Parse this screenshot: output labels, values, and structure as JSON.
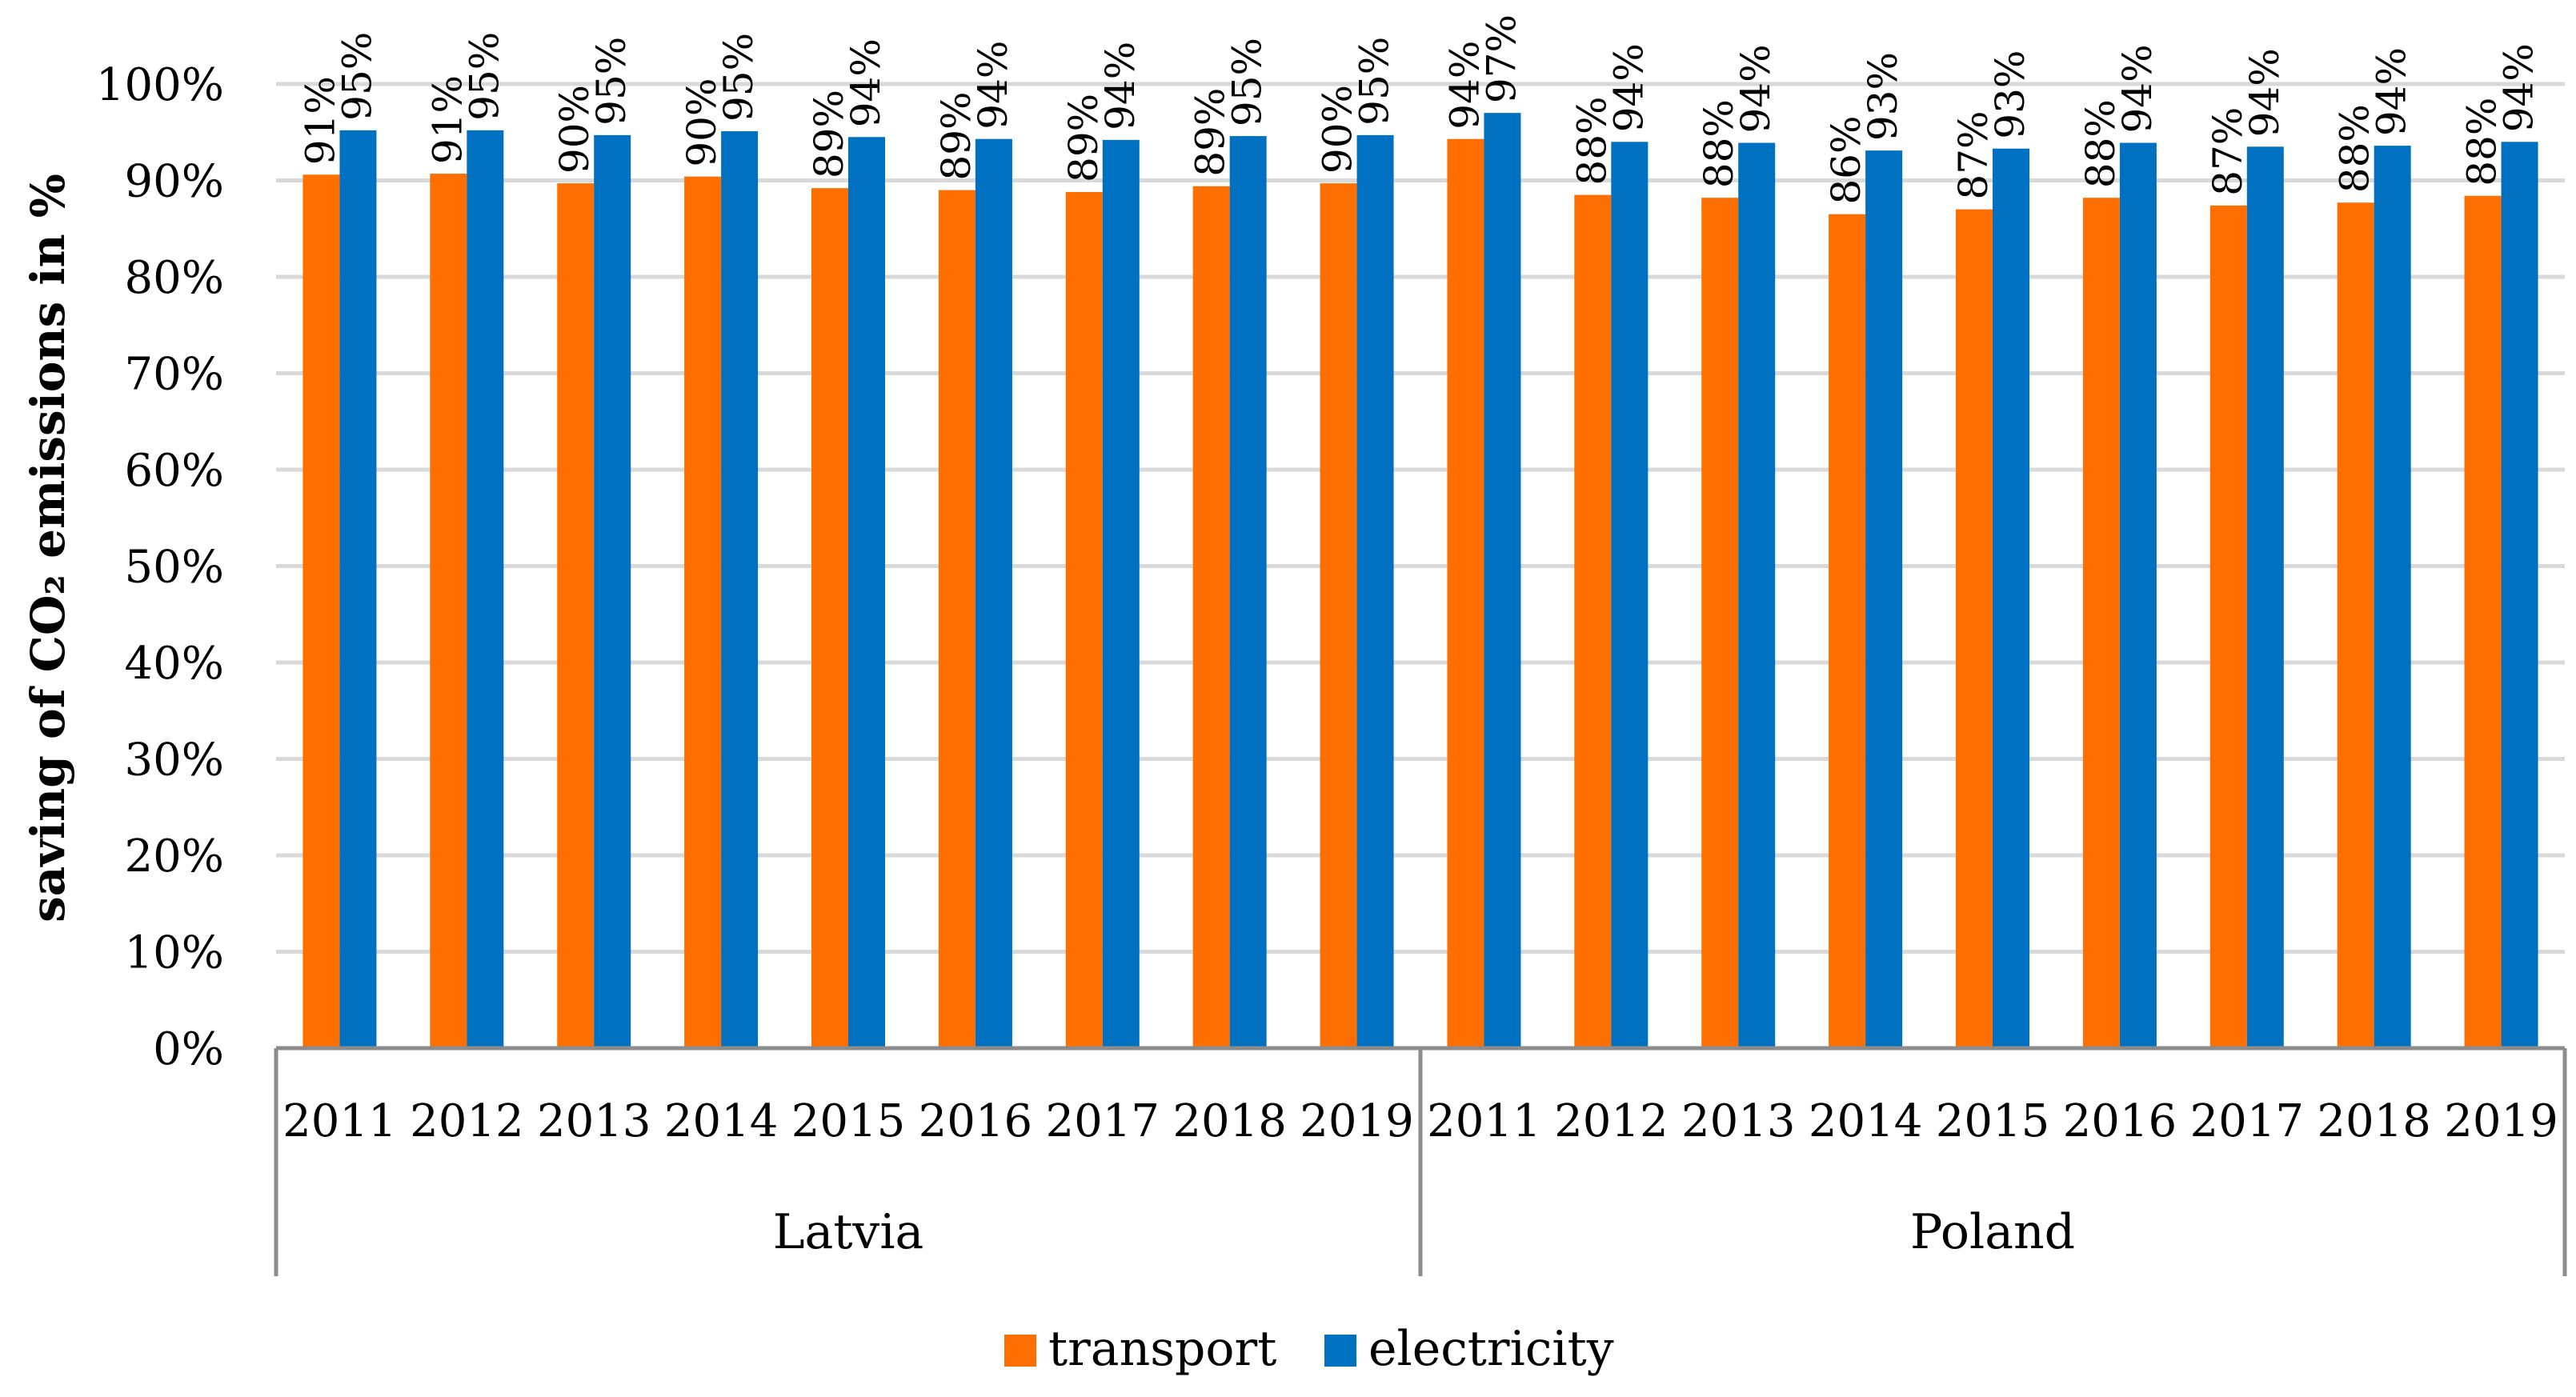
{
  "chart_data": {
    "type": "bar",
    "ylabel": "saving of CO₂ emissions in %",
    "ylim": [
      0,
      100
    ],
    "yticks": [
      "0%",
      "10%",
      "20%",
      "30%",
      "40%",
      "50%",
      "60%",
      "70%",
      "80%",
      "90%",
      "100%"
    ],
    "grid": true,
    "legend_position": "bottom",
    "groups": [
      {
        "name": "Latvia",
        "categories": [
          "2011",
          "2012",
          "2013",
          "2014",
          "2015",
          "2016",
          "2017",
          "2018",
          "2019"
        ]
      },
      {
        "name": "Poland",
        "categories": [
          "2011",
          "2012",
          "2013",
          "2014",
          "2015",
          "2016",
          "2017",
          "2018",
          "2019"
        ]
      }
    ],
    "series": [
      {
        "name": "transport",
        "color": "#FF6F00",
        "values": [
          90.6,
          90.7,
          89.7,
          90.4,
          89.2,
          89.0,
          88.8,
          89.4,
          89.7,
          94.3,
          88.5,
          88.2,
          86.5,
          87.0,
          88.2,
          87.4,
          87.7,
          88.4
        ],
        "labels": [
          "91%",
          "91%",
          "90%",
          "90%",
          "89%",
          "89%",
          "89%",
          "89%",
          "90%",
          "94%",
          "88%",
          "88%",
          "86%",
          "87%",
          "88%",
          "87%",
          "88%",
          "88%"
        ]
      },
      {
        "name": "electricity",
        "color": "#0070C0",
        "values": [
          95.2,
          95.2,
          94.7,
          95.1,
          94.5,
          94.3,
          94.2,
          94.6,
          94.7,
          97.0,
          94.0,
          93.9,
          93.1,
          93.3,
          93.9,
          93.5,
          93.6,
          94.0
        ],
        "labels": [
          "95%",
          "95%",
          "95%",
          "95%",
          "94%",
          "94%",
          "94%",
          "95%",
          "95%",
          "97%",
          "94%",
          "94%",
          "93%",
          "93%",
          "94%",
          "94%",
          "94%",
          "94%"
        ]
      }
    ]
  }
}
